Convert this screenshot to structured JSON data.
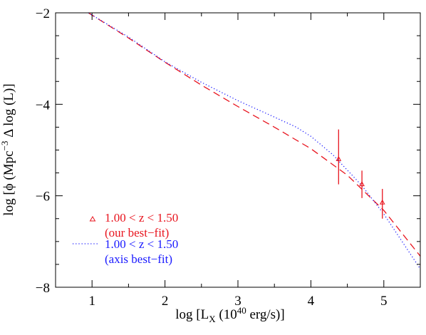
{
  "chart_data": {
    "type": "line",
    "xlabel": {
      "main": "log [L",
      "sub": "X",
      "open": " (10",
      "sup": "40",
      "rest": " erg/s)]"
    },
    "ylabel": {
      "main": "log [ϕ (Mpc",
      "sup": "−3",
      "rest": " Δ log (L)]"
    },
    "xlim": [
      0.5,
      5.5
    ],
    "ylim": [
      -8,
      -2
    ],
    "xticks": [
      1,
      2,
      3,
      4,
      5
    ],
    "yticks": [
      -8,
      -6,
      -4,
      -2
    ],
    "xtick_labels": [
      "1",
      "2",
      "3",
      "4",
      "5"
    ],
    "ytick_labels": [
      "−8",
      "−6",
      "−4",
      "−2"
    ],
    "grid": false,
    "legend_position": "lower-left",
    "series": [
      {
        "name": "1.00 < z < 1.50\n(our best−fit)",
        "label_line1": "1.00 < z <  1.50",
        "label_line2": "(our best−fit)",
        "style": "dashed",
        "color": "#e8141e",
        "x": [
          0.95,
          1.5,
          2.0,
          2.5,
          3.0,
          3.5,
          4.0,
          4.5,
          5.0,
          5.5
        ],
        "y": [
          -2.0,
          -2.55,
          -3.08,
          -3.58,
          -4.05,
          -4.5,
          -4.97,
          -5.55,
          -6.32,
          -7.32
        ]
      },
      {
        "name": "1.00 < z < 1.50\n(axis best−fit)",
        "label_line1": "1.00 < z <  1.50",
        "label_line2": "(axis best−fit)",
        "style": "dotted",
        "color": "#1a1aff",
        "x": [
          0.95,
          1.5,
          2.0,
          2.5,
          3.0,
          3.5,
          3.8,
          4.0,
          4.3,
          4.7,
          5.0,
          5.5
        ],
        "y": [
          -2.0,
          -2.53,
          -3.07,
          -3.52,
          -3.92,
          -4.28,
          -4.5,
          -4.7,
          -5.1,
          -5.78,
          -6.4,
          -7.6
        ]
      }
    ],
    "points": {
      "series": "1.00 < z < 1.50 (our best−fit)",
      "marker": "triangle",
      "color": "#e8141e",
      "x": [
        4.38,
        4.7,
        4.98
      ],
      "y": [
        -5.2,
        -5.75,
        -6.15
      ],
      "yerr_low": [
        0.55,
        0.3,
        0.35
      ],
      "yerr_high": [
        0.65,
        0.3,
        0.3
      ]
    }
  }
}
